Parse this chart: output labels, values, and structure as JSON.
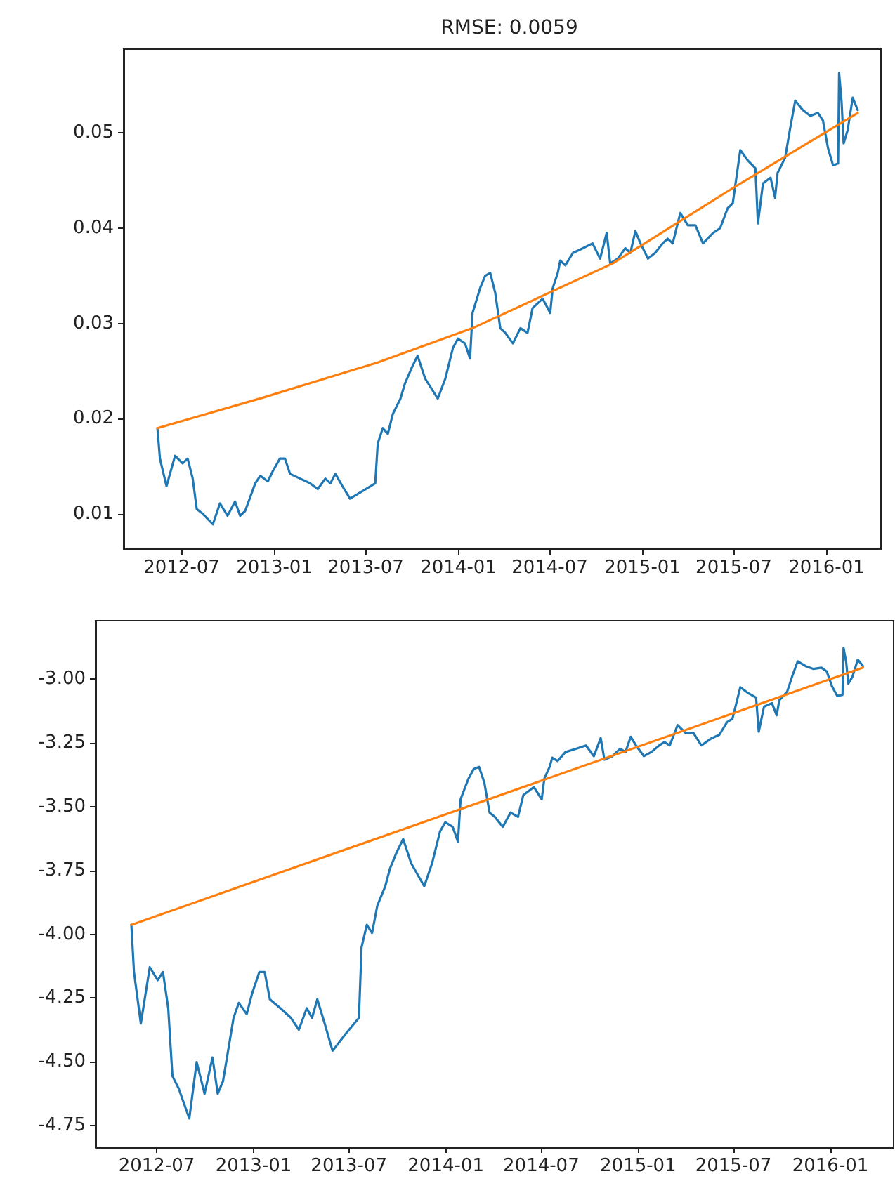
{
  "chart_data": [
    {
      "type": "line",
      "title": "RMSE: 0.0059",
      "xlim": [
        "2012-03-08",
        "2016-04-18"
      ],
      "xticks": [
        "2012-07",
        "2013-01",
        "2013-07",
        "2014-01",
        "2014-07",
        "2015-01",
        "2015-07",
        "2016-01"
      ],
      "ylim": [
        0.0063,
        0.0588
      ],
      "yticks": [
        0.01,
        0.02,
        0.03,
        0.04,
        0.05
      ],
      "grid": false,
      "marker": "none",
      "line_style": "solid",
      "series": [
        {
          "color": "#1f77b4",
          "x": [
            "2012-05-14",
            "2012-05-19",
            "2012-06-01",
            "2012-06-18",
            "2012-07-03",
            "2012-07-13",
            "2012-07-23",
            "2012-07-31",
            "2012-08-12",
            "2012-09-01",
            "2012-09-15",
            "2012-09-30",
            "2012-10-15",
            "2012-10-25",
            "2012-11-04",
            "2012-11-24",
            "2012-12-04",
            "2012-12-19",
            "2012-12-29",
            "2013-01-12",
            "2013-01-22",
            "2013-02-01",
            "2013-02-21",
            "2013-03-13",
            "2013-03-28",
            "2013-04-12",
            "2013-04-22",
            "2013-05-02",
            "2013-05-16",
            "2013-05-31",
            "2013-06-25",
            "2013-07-20",
            "2013-07-25",
            "2013-08-04",
            "2013-08-14",
            "2013-08-24",
            "2013-09-08",
            "2013-09-17",
            "2013-09-30",
            "2013-10-12",
            "2013-10-27",
            "2013-11-21",
            "2013-12-06",
            "2013-12-21",
            "2013-12-31",
            "2014-01-14",
            "2014-01-24",
            "2014-01-29",
            "2014-02-13",
            "2014-02-23",
            "2014-03-05",
            "2014-03-15",
            "2014-03-25",
            "2014-04-04",
            "2014-04-19",
            "2014-05-04",
            "2014-05-18",
            "2014-05-28",
            "2014-06-17",
            "2014-07-02",
            "2014-07-07",
            "2014-07-17",
            "2014-07-22",
            "2014-08-01",
            "2014-08-16",
            "2014-09-05",
            "2014-09-24",
            "2014-10-09",
            "2014-10-22",
            "2014-10-29",
            "2014-11-13",
            "2014-11-28",
            "2014-12-08",
            "2014-12-18",
            "2014-12-28",
            "2015-01-12",
            "2015-01-26",
            "2015-02-10",
            "2015-02-20",
            "2015-03-02",
            "2015-03-17",
            "2015-04-01",
            "2015-04-16",
            "2015-05-01",
            "2015-05-21",
            "2015-06-04",
            "2015-06-19",
            "2015-06-29",
            "2015-07-14",
            "2015-07-29",
            "2015-08-13",
            "2015-08-18",
            "2015-08-28",
            "2015-09-12",
            "2015-09-21",
            "2015-09-26",
            "2015-10-11",
            "2015-10-21",
            "2015-10-31",
            "2015-11-15",
            "2015-11-30",
            "2015-12-15",
            "2015-12-25",
            "2016-01-04",
            "2016-01-14",
            "2016-01-24",
            "2016-01-26",
            "2016-01-31",
            "2016-02-04",
            "2016-02-12",
            "2016-02-22",
            "2016-03-03"
          ],
          "values": [
            0.019,
            0.0158,
            0.0129,
            0.0161,
            0.0153,
            0.0158,
            0.0137,
            0.0105,
            0.01,
            0.0089,
            0.0111,
            0.0098,
            0.0113,
            0.0098,
            0.0103,
            0.0132,
            0.014,
            0.0134,
            0.0145,
            0.0158,
            0.0158,
            0.0142,
            0.0137,
            0.0132,
            0.0126,
            0.0137,
            0.0132,
            0.0142,
            0.0129,
            0.0116,
            0.0124,
            0.0132,
            0.0174,
            0.019,
            0.0184,
            0.0205,
            0.0221,
            0.0237,
            0.0253,
            0.0266,
            0.0242,
            0.0221,
            0.0242,
            0.0274,
            0.0284,
            0.0279,
            0.0263,
            0.0311,
            0.0337,
            0.035,
            0.0353,
            0.0332,
            0.0295,
            0.029,
            0.0279,
            0.0295,
            0.029,
            0.0316,
            0.0326,
            0.0311,
            0.0337,
            0.0353,
            0.0366,
            0.0361,
            0.0374,
            0.0379,
            0.0384,
            0.0368,
            0.0395,
            0.0363,
            0.0368,
            0.0379,
            0.0374,
            0.0397,
            0.0384,
            0.0368,
            0.0374,
            0.0384,
            0.0389,
            0.0384,
            0.0416,
            0.0403,
            0.0403,
            0.0384,
            0.0395,
            0.04,
            0.0421,
            0.0426,
            0.0482,
            0.0471,
            0.0463,
            0.0405,
            0.0447,
            0.0453,
            0.0432,
            0.0458,
            0.0474,
            0.0505,
            0.0534,
            0.0524,
            0.0518,
            0.0521,
            0.0513,
            0.0484,
            0.0466,
            0.0468,
            0.0563,
            0.0532,
            0.0489,
            0.0503,
            0.0537,
            0.0524
          ]
        },
        {
          "color": "#ff7f0e",
          "x": [
            "2012-05-14",
            "2012-12-09",
            "2013-07-25",
            "2014-01-29",
            "2014-11-03",
            "2015-06-29",
            "2016-03-03"
          ],
          "values": [
            0.019,
            0.0222,
            0.0259,
            0.0295,
            0.0363,
            0.0442,
            0.0521
          ]
        }
      ]
    },
    {
      "type": "line",
      "xlim": [
        "2012-03-07",
        "2016-04-30"
      ],
      "xticks": [
        "2012-07",
        "2013-01",
        "2013-07",
        "2014-01",
        "2014-07",
        "2015-01",
        "2015-07",
        "2016-01"
      ],
      "ylim": [
        -4.835,
        -2.771
      ],
      "yticks": [
        {
          "value": -4.75,
          "label": "-4.75"
        },
        {
          "value": -4.5,
          "label": "-4.50"
        },
        {
          "value": -4.25,
          "label": "-4.25"
        },
        {
          "value": -4,
          "label": "-4.00"
        },
        {
          "value": -3.75,
          "label": "-3.75"
        },
        {
          "value": -3.5,
          "label": "-3.50"
        },
        {
          "value": -3.25,
          "label": "-3.25"
        },
        {
          "value": -3,
          "label": "-3.00"
        }
      ],
      "grid": false,
      "marker": "none",
      "line_style": "solid",
      "series": [
        {
          "color": "#1f77b4",
          "x": [
            "2012-05-14",
            "2012-05-19",
            "2012-06-01",
            "2012-06-18",
            "2012-07-03",
            "2012-07-13",
            "2012-07-23",
            "2012-07-31",
            "2012-08-12",
            "2012-09-01",
            "2012-09-15",
            "2012-09-30",
            "2012-10-15",
            "2012-10-25",
            "2012-11-04",
            "2012-11-24",
            "2012-12-04",
            "2012-12-19",
            "2012-12-29",
            "2013-01-12",
            "2013-01-22",
            "2013-02-01",
            "2013-02-21",
            "2013-03-13",
            "2013-03-28",
            "2013-04-12",
            "2013-04-22",
            "2013-05-02",
            "2013-05-16",
            "2013-05-31",
            "2013-06-25",
            "2013-07-20",
            "2013-07-25",
            "2013-08-04",
            "2013-08-14",
            "2013-08-24",
            "2013-09-08",
            "2013-09-17",
            "2013-09-30",
            "2013-10-12",
            "2013-10-27",
            "2013-11-21",
            "2013-12-06",
            "2013-12-21",
            "2013-12-31",
            "2014-01-14",
            "2014-01-24",
            "2014-01-29",
            "2014-02-13",
            "2014-02-23",
            "2014-03-05",
            "2014-03-15",
            "2014-03-25",
            "2014-04-04",
            "2014-04-19",
            "2014-05-04",
            "2014-05-18",
            "2014-05-28",
            "2014-06-17",
            "2014-07-02",
            "2014-07-07",
            "2014-07-17",
            "2014-07-22",
            "2014-08-01",
            "2014-08-16",
            "2014-09-05",
            "2014-09-24",
            "2014-10-09",
            "2014-10-22",
            "2014-10-29",
            "2014-11-13",
            "2014-11-28",
            "2014-12-08",
            "2014-12-18",
            "2014-12-28",
            "2015-01-12",
            "2015-01-26",
            "2015-02-10",
            "2015-02-20",
            "2015-03-02",
            "2015-03-17",
            "2015-04-01",
            "2015-04-16",
            "2015-05-01",
            "2015-05-21",
            "2015-06-04",
            "2015-06-19",
            "2015-06-29",
            "2015-07-14",
            "2015-07-29",
            "2015-08-13",
            "2015-08-18",
            "2015-08-28",
            "2015-09-12",
            "2015-09-21",
            "2015-09-26",
            "2015-10-11",
            "2015-10-21",
            "2015-10-31",
            "2015-11-15",
            "2015-11-30",
            "2015-12-15",
            "2015-12-25",
            "2016-01-04",
            "2016-01-14",
            "2016-01-24",
            "2016-01-26",
            "2016-01-31",
            "2016-02-04",
            "2016-02-12",
            "2016-02-22",
            "2016-03-03"
          ],
          "values": [
            -3.963,
            -4.148,
            -4.35,
            -4.129,
            -4.18,
            -4.148,
            -4.29,
            -4.556,
            -4.605,
            -4.722,
            -4.501,
            -4.625,
            -4.483,
            -4.625,
            -4.576,
            -4.328,
            -4.269,
            -4.313,
            -4.234,
            -4.148,
            -4.148,
            -4.255,
            -4.29,
            -4.328,
            -4.374,
            -4.29,
            -4.328,
            -4.255,
            -4.35,
            -4.457,
            -4.39,
            -4.328,
            -4.051,
            -3.963,
            -3.995,
            -3.887,
            -3.812,
            -3.742,
            -3.677,
            -3.627,
            -3.721,
            -3.812,
            -3.721,
            -3.597,
            -3.561,
            -3.579,
            -3.638,
            -3.471,
            -3.39,
            -3.352,
            -3.344,
            -3.405,
            -3.523,
            -3.54,
            -3.579,
            -3.523,
            -3.54,
            -3.455,
            -3.423,
            -3.471,
            -3.39,
            -3.344,
            -3.308,
            -3.321,
            -3.286,
            -3.273,
            -3.26,
            -3.302,
            -3.231,
            -3.316,
            -3.302,
            -3.273,
            -3.286,
            -3.226,
            -3.26,
            -3.302,
            -3.286,
            -3.26,
            -3.247,
            -3.26,
            -3.18,
            -3.211,
            -3.211,
            -3.26,
            -3.231,
            -3.219,
            -3.168,
            -3.156,
            -3.032,
            -3.055,
            -3.073,
            -3.206,
            -3.108,
            -3.094,
            -3.142,
            -3.083,
            -3.049,
            -2.986,
            -2.93,
            -2.949,
            -2.96,
            -2.955,
            -2.97,
            -3.028,
            -3.066,
            -3.062,
            -2.877,
            -2.934,
            -3.018,
            -2.99,
            -2.924,
            -2.949
          ]
        },
        {
          "color": "#ff7f0e",
          "x": [
            "2012-05-14",
            "2016-03-03"
          ],
          "values": [
            -3.963,
            -2.955
          ]
        }
      ]
    }
  ]
}
